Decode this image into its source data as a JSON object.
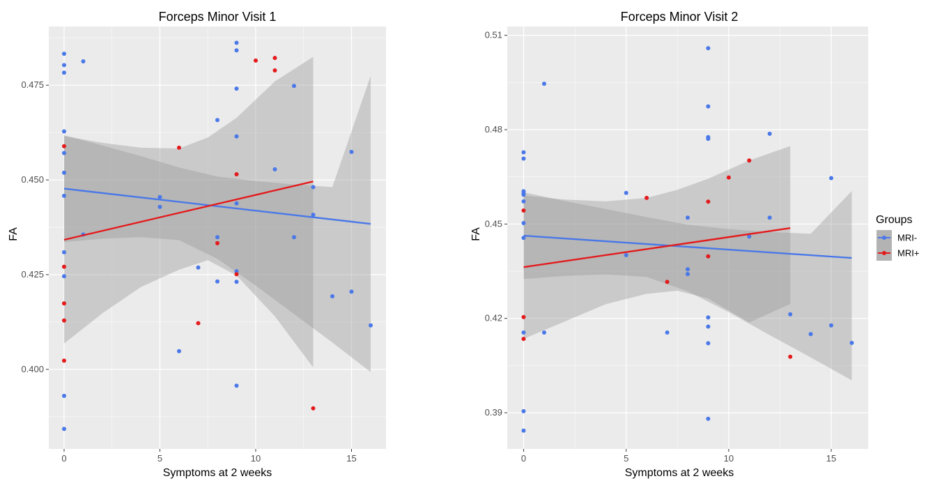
{
  "chart_data": [
    {
      "type": "scatter",
      "title": "Forceps Minor Visit 1",
      "xlabel": "Symptoms at 2 weeks",
      "ylabel": "FA",
      "xlim": [
        -0.8,
        16.8
      ],
      "ylim": [
        0.379,
        0.4905
      ],
      "xticks": [
        0,
        5,
        10,
        15
      ],
      "xtick_labels": [
        "0",
        "5",
        "10",
        "15"
      ],
      "yticks": [
        0.4,
        0.425,
        0.45,
        0.475
      ],
      "ytick_labels": [
        "0.400",
        "0.425",
        "0.450",
        "0.475"
      ],
      "grid": true,
      "series": [
        {
          "name": "MRI-",
          "color": "#4a78e8",
          "points": [
            [
              0,
              0.4833
            ],
            [
              0,
              0.4803
            ],
            [
              0,
              0.4783
            ],
            [
              0,
              0.4628
            ],
            [
              0,
              0.4571
            ],
            [
              0,
              0.4519
            ],
            [
              0,
              0.4458
            ],
            [
              0,
              0.4309
            ],
            [
              0,
              0.4246
            ],
            [
              0,
              0.393
            ],
            [
              0,
              0.3843
            ],
            [
              1,
              0.4813
            ],
            [
              1,
              0.4356
            ],
            [
              5,
              0.4455
            ],
            [
              5,
              0.4429
            ],
            [
              6,
              0.4048
            ],
            [
              7,
              0.4269
            ],
            [
              8,
              0.4658
            ],
            [
              8,
              0.4349
            ],
            [
              8,
              0.4232
            ],
            [
              9,
              0.4862
            ],
            [
              9,
              0.4842
            ],
            [
              9,
              0.4741
            ],
            [
              9,
              0.4615
            ],
            [
              9,
              0.4438
            ],
            [
              9,
              0.4259
            ],
            [
              9,
              0.4231
            ],
            [
              9,
              0.3957
            ],
            [
              11,
              0.4528
            ],
            [
              12,
              0.4748
            ],
            [
              12,
              0.4349
            ],
            [
              13,
              0.4481
            ],
            [
              13,
              0.4408
            ],
            [
              14,
              0.4193
            ],
            [
              15,
              0.4574
            ],
            [
              15,
              0.4205
            ],
            [
              16,
              0.4116
            ]
          ],
          "fit": {
            "x": [
              0,
              16
            ],
            "y": [
              0.4477,
              0.4384
            ]
          },
          "ci": {
            "x": [
              0,
              2,
              4,
              6,
              8,
              10,
              12,
              14,
              16
            ],
            "lower": [
              0.4336,
              0.4345,
              0.4349,
              0.4341,
              0.4292,
              0.4221,
              0.4146,
              0.4071,
              0.3993
            ],
            "upper": [
              0.4618,
              0.4591,
              0.4563,
              0.4533,
              0.4509,
              0.4497,
              0.4488,
              0.4481,
              0.4775
            ]
          }
        },
        {
          "name": "MRI+",
          "color": "#e41a1c",
          "points": [
            [
              0,
              0.4589
            ],
            [
              0,
              0.4271
            ],
            [
              0,
              0.4174
            ],
            [
              0,
              0.4129
            ],
            [
              0,
              0.4023
            ],
            [
              6,
              0.4585
            ],
            [
              7,
              0.4122
            ],
            [
              8,
              0.4333
            ],
            [
              9,
              0.4515
            ],
            [
              9,
              0.4251
            ],
            [
              10,
              0.4815
            ],
            [
              11,
              0.4822
            ],
            [
              11,
              0.4789
            ],
            [
              13,
              0.3897
            ]
          ],
          "fit": {
            "x": [
              0,
              13
            ],
            "y": [
              0.4342,
              0.4496
            ]
          },
          "ci": {
            "x": [
              0,
              2,
              4,
              6,
              7.5,
              9,
              11,
              13
            ],
            "lower": [
              0.4068,
              0.4148,
              0.4217,
              0.4263,
              0.4288,
              0.4248,
              0.414,
              0.4005
            ],
            "upper": [
              0.4616,
              0.4598,
              0.4585,
              0.4583,
              0.4612,
              0.4664,
              0.476,
              0.4825
            ]
          }
        }
      ]
    },
    {
      "type": "scatter",
      "title": "Forceps Minor Visit 2",
      "xlabel": "Symptoms at 2 weeks",
      "ylabel": "FA",
      "xlim": [
        -0.8,
        16.8
      ],
      "ylim": [
        0.3785,
        0.5128
      ],
      "xticks": [
        0,
        5,
        10,
        15
      ],
      "xtick_labels": [
        "0",
        "5",
        "10",
        "15"
      ],
      "yticks": [
        0.39,
        0.42,
        0.45,
        0.48,
        0.51
      ],
      "ytick_labels": [
        "0.39",
        "0.42",
        "0.45",
        "0.48",
        "0.51"
      ],
      "grid": true,
      "series": [
        {
          "name": "MRI-",
          "color": "#4a78e8",
          "points": [
            [
              0,
              0.4728
            ],
            [
              0,
              0.4708
            ],
            [
              0,
              0.4604
            ],
            [
              0,
              0.4598
            ],
            [
              0,
              0.4593
            ],
            [
              0,
              0.4572
            ],
            [
              0,
              0.4503
            ],
            [
              0,
              0.4456
            ],
            [
              0,
              0.4155
            ],
            [
              0,
              0.3905
            ],
            [
              0,
              0.3843
            ],
            [
              1,
              0.4946
            ],
            [
              1,
              0.4155
            ],
            [
              5,
              0.4599
            ],
            [
              5,
              0.4401
            ],
            [
              7,
              0.4155
            ],
            [
              8,
              0.452
            ],
            [
              8,
              0.4356
            ],
            [
              8,
              0.4341
            ],
            [
              9,
              0.5059
            ],
            [
              9,
              0.4874
            ],
            [
              9,
              0.4776
            ],
            [
              9,
              0.4771
            ],
            [
              9,
              0.4203
            ],
            [
              9,
              0.4174
            ],
            [
              9,
              0.4121
            ],
            [
              9,
              0.3881
            ],
            [
              11,
              0.446
            ],
            [
              12,
              0.4787
            ],
            [
              12,
              0.452
            ],
            [
              13,
              0.4213
            ],
            [
              14,
              0.415
            ],
            [
              15,
              0.4646
            ],
            [
              15,
              0.4178
            ],
            [
              16,
              0.4122
            ]
          ],
          "fit": {
            "x": [
              0,
              16
            ],
            "y": [
              0.4463,
              0.4392
            ]
          },
          "ci": {
            "x": [
              0,
              2,
              4,
              6,
              8,
              10,
              12,
              14,
              16
            ],
            "lower": [
              0.4325,
              0.4335,
              0.434,
              0.4332,
              0.4286,
              0.422,
              0.4147,
              0.4076,
              0.4003
            ],
            "upper": [
              0.4601,
              0.4573,
              0.4548,
              0.4522,
              0.4498,
              0.4484,
              0.4475,
              0.4469,
              0.4605
            ]
          }
        },
        {
          "name": "MRI+",
          "color": "#e41a1c",
          "points": [
            [
              0,
              0.4543
            ],
            [
              0,
              0.4204
            ],
            [
              0,
              0.4135
            ],
            [
              6,
              0.4583
            ],
            [
              7,
              0.4316
            ],
            [
              9,
              0.4571
            ],
            [
              9,
              0.4397
            ],
            [
              10,
              0.4648
            ],
            [
              11,
              0.4702
            ],
            [
              13,
              0.4078
            ]
          ],
          "fit": {
            "x": [
              0,
              13
            ],
            "y": [
              0.4363,
              0.4487
            ]
          },
          "ci": {
            "x": [
              0,
              2,
              4,
              6,
              7.5,
              9,
              11,
              13
            ],
            "lower": [
              0.4135,
              0.419,
              0.4245,
              0.4278,
              0.4288,
              0.4263,
              0.4187,
              0.4246
            ],
            "upper": [
              0.4591,
              0.4578,
              0.4572,
              0.4583,
              0.4609,
              0.4644,
              0.4702,
              0.4748
            ]
          }
        }
      ]
    }
  ],
  "legend": {
    "title": "Groups",
    "placement": "right",
    "entries": [
      {
        "label": "MRI-",
        "color": "#4a78e8"
      },
      {
        "label": "MRI+",
        "color": "#e41a1c"
      }
    ]
  },
  "style": {
    "panel_background": "#ebebeb",
    "grid_color": "#ffffff",
    "ci_fill": "#999999"
  }
}
